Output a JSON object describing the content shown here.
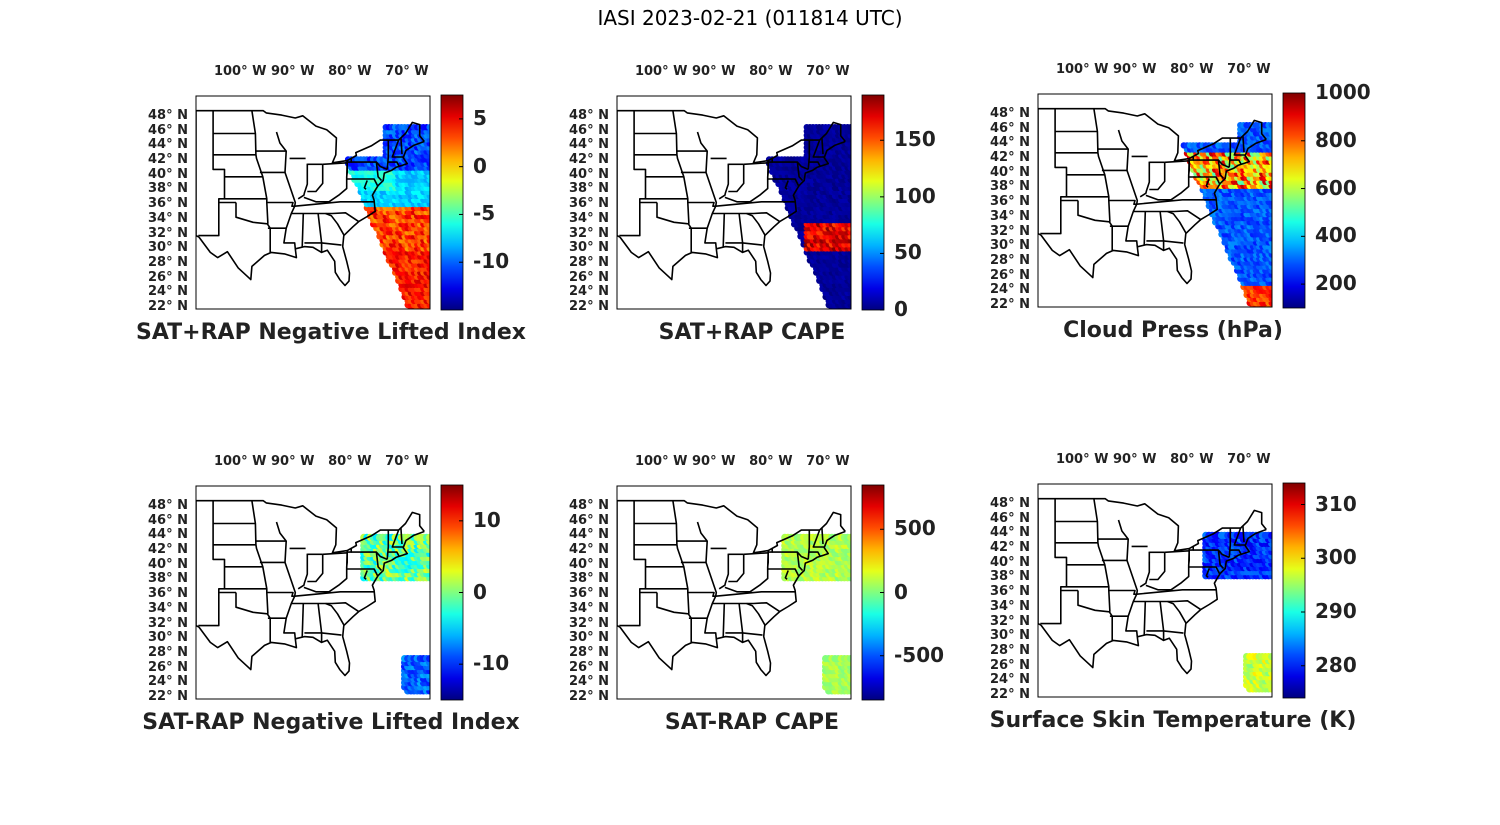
{
  "figure": {
    "title": "IASI 2023-02-21 (011814 UTC)"
  },
  "axes": {
    "lon_labels": [
      "100° W",
      "90° W",
      "80° W",
      "70° W"
    ],
    "lat_labels": [
      "48° N",
      "46° N",
      "44° N",
      "42° N",
      "40° N",
      "38° N",
      "36° N",
      "34° N",
      "32° N",
      "30° N",
      "28° N",
      "26° N",
      "24° N",
      "22° N"
    ]
  },
  "panels": [
    {
      "title": "SAT+RAP Negative Lifted Index",
      "colorbar_ticks": [
        "5",
        "0",
        "-5",
        "-10"
      ],
      "colorbar_range": [
        -15,
        7.5
      ]
    },
    {
      "title": "SAT+RAP CAPE",
      "colorbar_ticks": [
        "150",
        "100",
        "50",
        "0"
      ],
      "colorbar_range": [
        0,
        190
      ]
    },
    {
      "title": "Cloud Press (hPa)",
      "colorbar_ticks": [
        "1000",
        "800",
        "600",
        "400",
        "200"
      ],
      "colorbar_range": [
        100,
        1000
      ]
    },
    {
      "title": "SAT-RAP Negative Lifted Index",
      "colorbar_ticks": [
        "10",
        "0",
        "-10"
      ],
      "colorbar_range": [
        -15,
        15
      ]
    },
    {
      "title": "SAT-RAP CAPE",
      "colorbar_ticks": [
        "500",
        "0",
        "-500"
      ],
      "colorbar_range": [
        -850,
        850
      ]
    },
    {
      "title": "Surface Skin Temperature (K)",
      "colorbar_ticks": [
        "310",
        "300",
        "290",
        "280"
      ],
      "colorbar_range": [
        274,
        314
      ]
    }
  ]
}
